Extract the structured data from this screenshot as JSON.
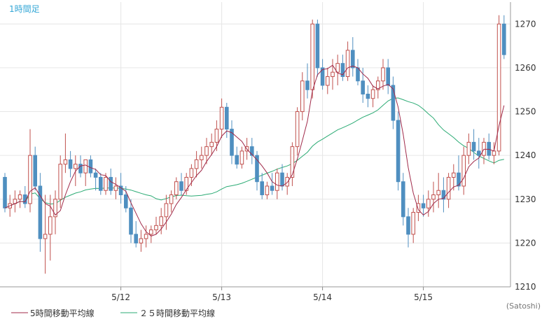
{
  "timeframe_label": "1時間足",
  "credit": "(Satoshi)",
  "chart_data": {
    "type": "candlestick",
    "ylim": [
      1210,
      1275
    ],
    "y_ticks": [
      1210,
      1220,
      1230,
      1240,
      1250,
      1260,
      1270
    ],
    "x_labels": [
      "5/12",
      "5/13",
      "5/14",
      "5/15"
    ],
    "x_label_candle_index": [
      23,
      43,
      63,
      83
    ],
    "grid": true,
    "colors": {
      "up": "#c0504d",
      "down": "#4f8fc0",
      "ma5": "#a02a4a",
      "ma25": "#2bab74"
    },
    "legend": [
      {
        "name": "5時間移動平均線",
        "color": "#a02a4a"
      },
      {
        "name": "２５時間移動平均線",
        "color": "#2bab74"
      }
    ],
    "candles": [
      [
        1235,
        1236,
        1227,
        1228
      ],
      [
        1228,
        1231,
        1226,
        1229
      ],
      [
        1229,
        1232,
        1227,
        1230
      ],
      [
        1230,
        1232,
        1228,
        1231
      ],
      [
        1231,
        1233,
        1228,
        1229
      ],
      [
        1229,
        1246,
        1227,
        1240
      ],
      [
        1240,
        1242,
        1232,
        1233
      ],
      [
        1233,
        1236,
        1218,
        1221
      ],
      [
        1221,
        1231,
        1213,
        1222
      ],
      [
        1222,
        1231,
        1216,
        1226
      ],
      [
        1226,
        1232,
        1222,
        1230
      ],
      [
        1230,
        1240,
        1228,
        1238
      ],
      [
        1238,
        1245,
        1236,
        1239
      ],
      [
        1239,
        1241,
        1235,
        1237
      ],
      [
        1237,
        1240,
        1233,
        1238
      ],
      [
        1238,
        1240,
        1235,
        1236
      ],
      [
        1236,
        1239,
        1233,
        1239
      ],
      [
        1239,
        1240,
        1235,
        1236
      ],
      [
        1236,
        1237,
        1232,
        1235
      ],
      [
        1235,
        1236,
        1231,
        1232
      ],
      [
        1232,
        1236,
        1231,
        1235
      ],
      [
        1235,
        1237,
        1231,
        1232
      ],
      [
        1232,
        1235,
        1230,
        1233
      ],
      [
        1233,
        1236,
        1229,
        1231
      ],
      [
        1231,
        1233,
        1227,
        1228
      ],
      [
        1228,
        1230,
        1220,
        1222
      ],
      [
        1222,
        1225,
        1219,
        1220
      ],
      [
        1220,
        1223,
        1218,
        1221
      ],
      [
        1221,
        1224,
        1219,
        1222
      ],
      [
        1222,
        1224,
        1220,
        1223
      ],
      [
        1223,
        1226,
        1222,
        1224
      ],
      [
        1224,
        1228,
        1222,
        1226
      ],
      [
        1226,
        1231,
        1223,
        1229
      ],
      [
        1229,
        1232,
        1227,
        1231
      ],
      [
        1231,
        1235,
        1230,
        1234
      ],
      [
        1234,
        1236,
        1231,
        1232
      ],
      [
        1232,
        1236,
        1231,
        1235
      ],
      [
        1235,
        1238,
        1233,
        1237
      ],
      [
        1237,
        1241,
        1235,
        1239
      ],
      [
        1239,
        1242,
        1237,
        1240
      ],
      [
        1240,
        1244,
        1238,
        1242
      ],
      [
        1242,
        1245,
        1240,
        1243
      ],
      [
        1243,
        1248,
        1241,
        1246
      ],
      [
        1246,
        1253,
        1244,
        1251
      ],
      [
        1251,
        1252,
        1244,
        1246
      ],
      [
        1246,
        1248,
        1238,
        1240
      ],
      [
        1240,
        1242,
        1237,
        1238
      ],
      [
        1238,
        1242,
        1237,
        1241
      ],
      [
        1241,
        1244,
        1239,
        1242
      ],
      [
        1242,
        1244,
        1238,
        1240
      ],
      [
        1240,
        1241,
        1232,
        1234
      ],
      [
        1234,
        1236,
        1230,
        1231
      ],
      [
        1231,
        1234,
        1230,
        1233
      ],
      [
        1233,
        1236,
        1231,
        1232
      ],
      [
        1232,
        1237,
        1230,
        1236
      ],
      [
        1236,
        1238,
        1232,
        1233
      ],
      [
        1233,
        1236,
        1231,
        1235
      ],
      [
        1235,
        1243,
        1233,
        1242
      ],
      [
        1242,
        1251,
        1240,
        1250
      ],
      [
        1250,
        1259,
        1248,
        1257
      ],
      [
        1257,
        1261,
        1253,
        1255
      ],
      [
        1255,
        1271,
        1253,
        1270
      ],
      [
        1270,
        1271,
        1258,
        1260
      ],
      [
        1260,
        1262,
        1255,
        1256
      ],
      [
        1256,
        1260,
        1254,
        1258
      ],
      [
        1258,
        1262,
        1255,
        1259
      ],
      [
        1259,
        1263,
        1256,
        1261
      ],
      [
        1261,
        1263,
        1257,
        1258
      ],
      [
        1258,
        1266,
        1257,
        1264
      ],
      [
        1264,
        1267,
        1258,
        1260
      ],
      [
        1260,
        1262,
        1256,
        1257
      ],
      [
        1257,
        1260,
        1252,
        1254
      ],
      [
        1254,
        1256,
        1251,
        1253
      ],
      [
        1253,
        1256,
        1251,
        1255
      ],
      [
        1255,
        1258,
        1253,
        1257
      ],
      [
        1257,
        1262,
        1255,
        1260
      ],
      [
        1260,
        1262,
        1254,
        1256
      ],
      [
        1256,
        1258,
        1246,
        1248
      ],
      [
        1248,
        1250,
        1232,
        1234
      ],
      [
        1234,
        1236,
        1224,
        1226
      ],
      [
        1226,
        1228,
        1219,
        1222
      ],
      [
        1222,
        1228,
        1220,
        1227
      ],
      [
        1227,
        1231,
        1225,
        1229
      ],
      [
        1229,
        1231,
        1226,
        1228
      ],
      [
        1228,
        1232,
        1226,
        1230
      ],
      [
        1230,
        1234,
        1227,
        1231
      ],
      [
        1231,
        1236,
        1228,
        1232
      ],
      [
        1232,
        1235,
        1227,
        1230
      ],
      [
        1230,
        1236,
        1228,
        1235
      ],
      [
        1235,
        1238,
        1232,
        1236
      ],
      [
        1236,
        1240,
        1232,
        1233
      ],
      [
        1233,
        1242,
        1231,
        1240
      ],
      [
        1240,
        1245,
        1238,
        1243
      ],
      [
        1243,
        1246,
        1239,
        1241
      ],
      [
        1241,
        1244,
        1237,
        1240
      ],
      [
        1240,
        1244,
        1238,
        1243
      ],
      [
        1243,
        1245,
        1239,
        1240
      ],
      [
        1240,
        1243,
        1238,
        1241
      ],
      [
        1241,
        1272,
        1240,
        1270
      ],
      [
        1270,
        1272,
        1262,
        1263
      ]
    ]
  }
}
